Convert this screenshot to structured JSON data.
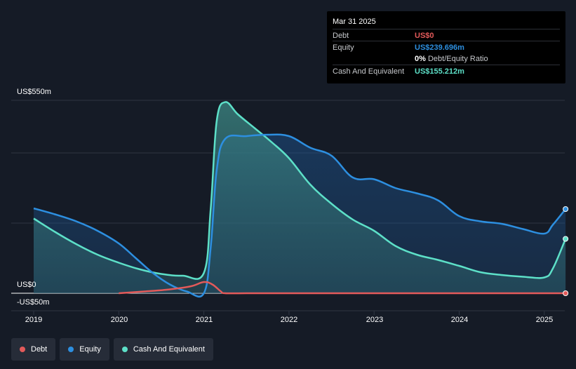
{
  "chart_data": {
    "type": "area",
    "y_ticks": [
      {
        "value": 550,
        "label": "US$550m"
      },
      {
        "value": 0,
        "label": "US$0"
      },
      {
        "value": -50,
        "label": "-US$50m"
      }
    ],
    "ylim": [
      -50,
      550
    ],
    "xlim": [
      2018.82,
      2025.25
    ],
    "x_ticks": [
      "2019",
      "2020",
      "2021",
      "2022",
      "2023",
      "2024",
      "2025"
    ],
    "grid": true,
    "legend_placement": "bottom-left",
    "series": [
      {
        "name": "Debt",
        "color": "#e35a5a",
        "points": [
          [
            2020.0,
            0
          ],
          [
            2020.3,
            5
          ],
          [
            2020.6,
            11
          ],
          [
            2020.85,
            20
          ],
          [
            2021.0,
            32
          ],
          [
            2021.1,
            25
          ],
          [
            2021.2,
            5
          ],
          [
            2021.25,
            0
          ],
          [
            2021.5,
            0
          ],
          [
            2022,
            0
          ],
          [
            2023,
            0
          ],
          [
            2024,
            0
          ],
          [
            2025,
            0
          ],
          [
            2025.25,
            0
          ]
        ]
      },
      {
        "name": "Equity",
        "color": "#2d8fe0",
        "points": [
          [
            2019.0,
            242
          ],
          [
            2019.25,
            225
          ],
          [
            2019.5,
            205
          ],
          [
            2019.75,
            178
          ],
          [
            2020.0,
            142
          ],
          [
            2020.2,
            100
          ],
          [
            2020.4,
            58
          ],
          [
            2020.6,
            25
          ],
          [
            2020.8,
            5
          ],
          [
            2021.0,
            0
          ],
          [
            2021.08,
            130
          ],
          [
            2021.15,
            350
          ],
          [
            2021.25,
            440
          ],
          [
            2021.5,
            448
          ],
          [
            2021.75,
            452
          ],
          [
            2022.0,
            448
          ],
          [
            2022.25,
            415
          ],
          [
            2022.5,
            392
          ],
          [
            2022.75,
            330
          ],
          [
            2023.0,
            325
          ],
          [
            2023.25,
            300
          ],
          [
            2023.5,
            285
          ],
          [
            2023.75,
            265
          ],
          [
            2024.0,
            220
          ],
          [
            2024.25,
            205
          ],
          [
            2024.5,
            198
          ],
          [
            2024.75,
            183
          ],
          [
            2025.0,
            170
          ],
          [
            2025.1,
            195
          ],
          [
            2025.25,
            240
          ]
        ]
      },
      {
        "name": "Cash And Equivalent",
        "color": "#5de0c8",
        "points": [
          [
            2019.0,
            213
          ],
          [
            2019.25,
            175
          ],
          [
            2019.5,
            140
          ],
          [
            2019.75,
            110
          ],
          [
            2020.0,
            87
          ],
          [
            2020.25,
            68
          ],
          [
            2020.5,
            55
          ],
          [
            2020.75,
            50
          ],
          [
            2021.0,
            58
          ],
          [
            2021.08,
            240
          ],
          [
            2021.15,
            490
          ],
          [
            2021.25,
            545
          ],
          [
            2021.4,
            510
          ],
          [
            2021.6,
            470
          ],
          [
            2021.8,
            430
          ],
          [
            2022.0,
            385
          ],
          [
            2022.25,
            310
          ],
          [
            2022.5,
            255
          ],
          [
            2022.75,
            210
          ],
          [
            2023.0,
            178
          ],
          [
            2023.25,
            135
          ],
          [
            2023.5,
            110
          ],
          [
            2023.75,
            95
          ],
          [
            2024.0,
            78
          ],
          [
            2024.25,
            60
          ],
          [
            2024.5,
            52
          ],
          [
            2024.75,
            47
          ],
          [
            2025.0,
            45
          ],
          [
            2025.1,
            70
          ],
          [
            2025.25,
            155
          ]
        ]
      }
    ]
  },
  "tooltip": {
    "date": "Mar 31 2025",
    "rows": [
      {
        "label": "Debt",
        "value": "US$0",
        "color": "#e35a5a"
      },
      {
        "label": "Equity",
        "value": "US$239.696m",
        "color": "#2d8fe0"
      },
      {
        "label": "",
        "value": "0%",
        "suffix": "Debt/Equity Ratio",
        "color": "#ffffff"
      },
      {
        "label": "Cash And Equivalent",
        "value": "US$155.212m",
        "color": "#5de0c8"
      }
    ]
  },
  "legend": [
    {
      "label": "Debt",
      "color": "#e35a5a"
    },
    {
      "label": "Equity",
      "color": "#2d8fe0"
    },
    {
      "label": "Cash And Equivalent",
      "color": "#5de0c8"
    }
  ]
}
